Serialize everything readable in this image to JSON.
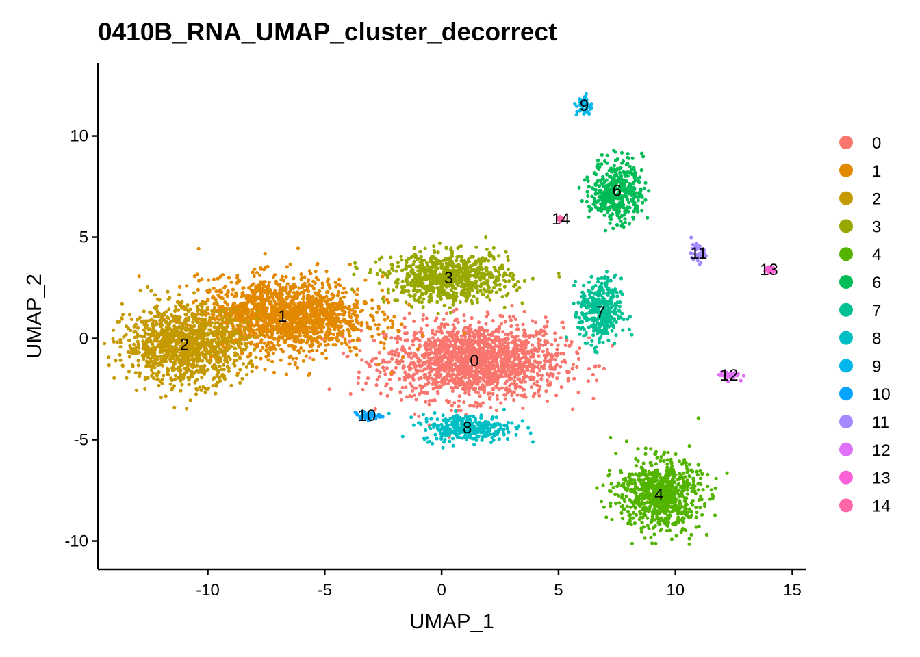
{
  "chart_data": {
    "type": "scatter",
    "title": "0410B_RNA_UMAP_cluster_decorrect",
    "xlabel": "UMAP_1",
    "ylabel": "UMAP_2",
    "xlim": [
      -14.7,
      15.6
    ],
    "ylim": [
      -11.4,
      13.6
    ],
    "x_ticks": [
      -10,
      -5,
      0,
      5,
      10,
      15
    ],
    "x_tick_labels": [
      "-10",
      "-5",
      "0",
      "5",
      "10",
      "15"
    ],
    "y_ticks": [
      -10,
      -5,
      0,
      5,
      10
    ],
    "y_tick_labels": [
      "-10",
      "-5",
      "0",
      "5",
      "10"
    ],
    "grid": false,
    "legend_position": "right",
    "clusters": [
      {
        "name": "0",
        "color": "#F8766D",
        "center": [
          1.4,
          -1.1
        ],
        "spread": [
          3.4,
          1.7
        ],
        "label_pos": [
          1.4,
          -1.1
        ]
      },
      {
        "name": "1",
        "color": "#E38900",
        "center": [
          -6.8,
          1.1
        ],
        "spread": [
          3.3,
          1.7
        ],
        "label_pos": [
          -6.8,
          1.1
        ]
      },
      {
        "name": "2",
        "color": "#C49A00",
        "center": [
          -11.0,
          -0.3
        ],
        "spread": [
          2.3,
          1.7
        ],
        "label_pos": [
          -11.0,
          -0.3
        ]
      },
      {
        "name": "3",
        "color": "#99A800",
        "center": [
          0.3,
          3.0
        ],
        "spread": [
          2.4,
          1.1
        ],
        "label_pos": [
          0.3,
          3.0
        ]
      },
      {
        "name": "4",
        "color": "#53B400",
        "center": [
          9.3,
          -7.7
        ],
        "spread": [
          1.6,
          1.6
        ],
        "label_pos": [
          9.3,
          -7.7
        ]
      },
      {
        "name": "6",
        "color": "#00BC56",
        "center": [
          7.5,
          7.3
        ],
        "spread": [
          1.0,
          1.4
        ],
        "label_pos": [
          7.5,
          7.3
        ]
      },
      {
        "name": "7",
        "color": "#00C094",
        "center": [
          6.8,
          1.3
        ],
        "spread": [
          0.8,
          1.5
        ],
        "label_pos": [
          6.8,
          1.3
        ]
      },
      {
        "name": "8",
        "color": "#00BFC4",
        "center": [
          1.1,
          -4.4
        ],
        "spread": [
          1.8,
          0.6
        ],
        "label_pos": [
          1.1,
          -4.4
        ]
      },
      {
        "name": "9",
        "color": "#00B6EB",
        "center": [
          6.1,
          11.5
        ],
        "spread": [
          0.3,
          0.5
        ],
        "label_pos": [
          6.1,
          11.5
        ]
      },
      {
        "name": "10",
        "color": "#06A4FF",
        "center": [
          -3.2,
          -3.8
        ],
        "spread": [
          0.5,
          0.2
        ],
        "label_pos": [
          -3.2,
          -3.8
        ]
      },
      {
        "name": "11",
        "color": "#A58AFF",
        "center": [
          11.0,
          4.2
        ],
        "spread": [
          0.3,
          0.4
        ],
        "label_pos": [
          11.0,
          4.2
        ]
      },
      {
        "name": "12",
        "color": "#DF70F8",
        "center": [
          12.3,
          -1.8
        ],
        "spread": [
          0.4,
          0.2
        ],
        "label_pos": [
          12.3,
          -1.8
        ]
      },
      {
        "name": "13",
        "color": "#FB61D7",
        "center": [
          14.0,
          3.4
        ],
        "spread": [
          0.15,
          0.15
        ],
        "label_pos": [
          14.0,
          3.4
        ]
      },
      {
        "name": "14",
        "color": "#FF66A8",
        "center": [
          5.1,
          5.9
        ],
        "spread": [
          0.1,
          0.1
        ],
        "label_pos": [
          5.1,
          5.9
        ]
      }
    ]
  }
}
